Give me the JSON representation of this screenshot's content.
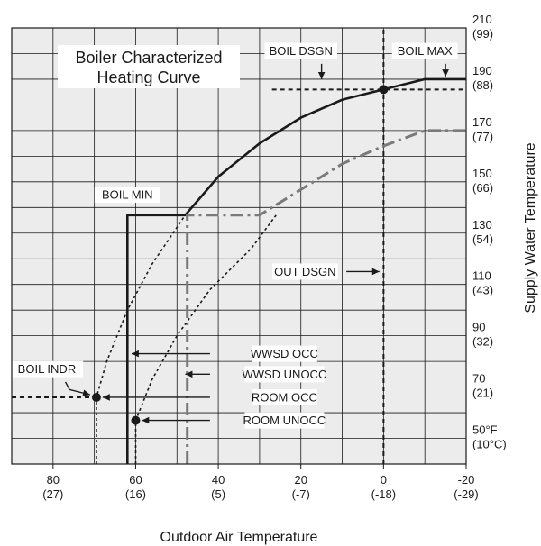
{
  "chart_data": {
    "type": "line",
    "title_lines": [
      "Boiler Characterized",
      "Heating Curve"
    ],
    "xlabel": "Outdoor Air Temperature",
    "ylabel": "Supply Water Temperature",
    "xlim": [
      90,
      -20
    ],
    "ylim": [
      40,
      210
    ],
    "x_ticks": [
      {
        "value": 80,
        "label": "80",
        "sub": "(27)"
      },
      {
        "value": 60,
        "label": "60",
        "sub": "(16)"
      },
      {
        "value": 40,
        "label": "40",
        "sub": "(5)"
      },
      {
        "value": 20,
        "label": "20",
        "sub": "(-7)"
      },
      {
        "value": 0,
        "label": "0",
        "sub": "(-18)"
      },
      {
        "value": -20,
        "label": "-20",
        "sub": "(-29)"
      }
    ],
    "y_ticks": [
      {
        "value": 210,
        "label": "210",
        "sub": "(99)"
      },
      {
        "value": 190,
        "label": "190",
        "sub": "(88)"
      },
      {
        "value": 170,
        "label": "170",
        "sub": "(77)"
      },
      {
        "value": 150,
        "label": "150",
        "sub": "(66)"
      },
      {
        "value": 130,
        "label": "130",
        "sub": "(54)"
      },
      {
        "value": 110,
        "label": "110",
        "sub": "(43)"
      },
      {
        "value": 90,
        "label": "90",
        "sub": "(32)"
      },
      {
        "value": 70,
        "label": "70",
        "sub": "(21)"
      },
      {
        "value": 50,
        "label": "50°F",
        "sub": "(10°C)"
      }
    ],
    "series": [
      {
        "style": "solid",
        "color": "#1a1a1a",
        "points": [
          [
            62,
            40
          ],
          [
            62,
            137
          ],
          [
            48,
            137
          ],
          [
            40,
            152
          ],
          [
            30,
            165
          ],
          [
            20,
            175
          ],
          [
            10,
            182
          ],
          [
            0,
            186
          ],
          [
            -10,
            190
          ],
          [
            -20,
            190
          ]
        ]
      },
      {
        "style": "dash-dot",
        "color": "#7a7a7a",
        "points": [
          [
            47.5,
            40
          ],
          [
            47.5,
            137
          ],
          [
            30,
            137
          ],
          [
            20,
            147
          ],
          [
            10,
            157
          ],
          [
            0,
            164
          ],
          [
            -10,
            170
          ],
          [
            -20,
            170
          ]
        ]
      },
      {
        "style": "dotted",
        "color": "#1a1a1a",
        "points": [
          [
            69.5,
            40
          ],
          [
            69.5,
            66
          ],
          [
            67,
            80
          ],
          [
            62,
            100
          ],
          [
            56,
            118
          ],
          [
            48,
            137
          ]
        ]
      },
      {
        "style": "dotted",
        "color": "#1a1a1a",
        "points": [
          [
            60,
            40
          ],
          [
            60,
            57
          ],
          [
            56,
            73
          ],
          [
            50,
            90
          ],
          [
            42,
            108
          ],
          [
            32,
            124
          ],
          [
            26,
            137
          ]
        ]
      }
    ],
    "markers": [
      {
        "name": "boil-indr",
        "x": 69.5,
        "y": 66
      },
      {
        "name": "room-unocc",
        "x": 60,
        "y": 57
      },
      {
        "name": "boil-dsgn",
        "x": 0,
        "y": 186
      }
    ],
    "guides": [
      {
        "orientation": "v",
        "at": 0,
        "from": 40,
        "to": 210
      },
      {
        "orientation": "h",
        "at": 186,
        "from": 27,
        "to": -20
      },
      {
        "orientation": "h",
        "at": 66,
        "from": 90,
        "to": 69.5
      }
    ],
    "annotations": [
      {
        "text": "BOIL DSGN",
        "x": 20,
        "y": 201,
        "pointer": [
          [
            15,
            196
          ],
          [
            15,
            190
          ]
        ]
      },
      {
        "text": "BOIL MAX",
        "x": -10,
        "y": 201,
        "pointer": [
          [
            -15,
            196
          ],
          [
            -15,
            191
          ]
        ]
      },
      {
        "text": "BOIL MIN",
        "x": 62,
        "y": 145,
        "pointer": null
      },
      {
        "text": "OUT DSGN",
        "x": 19,
        "y": 115,
        "pointer": [
          [
            9,
            115
          ],
          [
            1,
            115
          ]
        ]
      },
      {
        "text": "WWSD OCC",
        "x": 24,
        "y": 83,
        "pointer": [
          [
            42,
            83
          ],
          [
            61,
            83
          ]
        ]
      },
      {
        "text": "WWSD UNOCC",
        "x": 24,
        "y": 75,
        "pointer": [
          [
            42,
            75
          ],
          [
            48,
            75
          ]
        ]
      },
      {
        "text": "ROOM OCC",
        "x": 24,
        "y": 66,
        "pointer": [
          [
            42,
            66
          ],
          [
            68,
            66
          ]
        ]
      },
      {
        "text": "ROOM UNOCC",
        "x": 24,
        "y": 57,
        "pointer": [
          [
            42,
            57
          ],
          [
            58.5,
            57
          ]
        ]
      },
      {
        "text": "BOIL INDR",
        "x": 81.5,
        "y": 77,
        "pointer": [
          [
            77,
            72
          ],
          [
            76,
            69
          ],
          [
            71,
            67
          ]
        ]
      }
    ],
    "grid": true,
    "legend": "none",
    "colors": {
      "background": "#ececec",
      "label_bg": "#ffffff",
      "grid": "#1a1a1a"
    }
  }
}
